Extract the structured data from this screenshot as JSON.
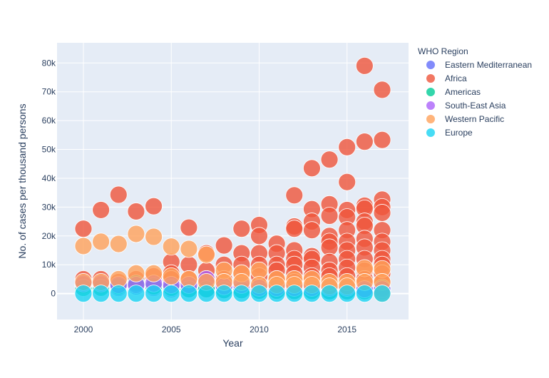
{
  "chart_data": {
    "type": "scatter",
    "xlabel": "Year",
    "ylabel": "No. of cases per thousand persons",
    "xlim": [
      1998.5,
      2018.5
    ],
    "ylim": [
      -9000,
      87000
    ],
    "x_ticks": [
      2000,
      2005,
      2010,
      2015
    ],
    "y_ticks": [
      0,
      10000,
      20000,
      30000,
      40000,
      50000,
      60000,
      70000,
      80000
    ],
    "y_tick_labels": [
      "0",
      "10k",
      "20k",
      "30k",
      "40k",
      "50k",
      "60k",
      "70k",
      "80k"
    ],
    "grid": true,
    "legend_position": "top-right",
    "legend": {
      "title": "WHO Region",
      "entries": [
        "Eastern Mediterranean",
        "Africa",
        "Americas",
        "South-East Asia",
        "Western Pacific",
        "Europe"
      ]
    },
    "series": [
      {
        "name": "Eastern Mediterranean",
        "color": "#636efa",
        "points": [
          [
            2000,
            3000
          ],
          [
            2001,
            2500
          ],
          [
            2002,
            2000
          ],
          [
            2003,
            2500
          ],
          [
            2004,
            2000
          ],
          [
            2005,
            1500
          ],
          [
            2006,
            1500
          ],
          [
            2007,
            1500
          ],
          [
            2008,
            1200
          ],
          [
            2009,
            1200
          ],
          [
            2010,
            1000
          ],
          [
            2011,
            1000
          ],
          [
            2012,
            1000
          ],
          [
            2013,
            1000
          ],
          [
            2014,
            900
          ],
          [
            2015,
            900
          ],
          [
            2016,
            900
          ],
          [
            2017,
            900
          ]
        ]
      },
      {
        "name": "Africa",
        "color": "#ef553b",
        "points": [
          [
            2000,
            22500
          ],
          [
            2000,
            5000
          ],
          [
            2000,
            3000
          ],
          [
            2001,
            29000
          ],
          [
            2001,
            5000
          ],
          [
            2001,
            3000
          ],
          [
            2002,
            34300
          ],
          [
            2002,
            4000
          ],
          [
            2003,
            28500
          ],
          [
            2003,
            5000
          ],
          [
            2004,
            30300
          ],
          [
            2004,
            6000
          ],
          [
            2005,
            11000
          ],
          [
            2005,
            7000
          ],
          [
            2005,
            5000
          ],
          [
            2006,
            22900
          ],
          [
            2006,
            10000
          ],
          [
            2006,
            5000
          ],
          [
            2007,
            14000
          ],
          [
            2007,
            8000
          ],
          [
            2007,
            5000
          ],
          [
            2008,
            16700
          ],
          [
            2008,
            10000
          ],
          [
            2008,
            5000
          ],
          [
            2009,
            22500
          ],
          [
            2009,
            14000
          ],
          [
            2009,
            10000
          ],
          [
            2009,
            7000
          ],
          [
            2010,
            23800
          ],
          [
            2010,
            20000
          ],
          [
            2010,
            14000
          ],
          [
            2010,
            10000
          ],
          [
            2010,
            6000
          ],
          [
            2011,
            17300
          ],
          [
            2011,
            14000
          ],
          [
            2011,
            10000
          ],
          [
            2011,
            8000
          ],
          [
            2011,
            5000
          ],
          [
            2012,
            34100
          ],
          [
            2012,
            23300
          ],
          [
            2012,
            22500
          ],
          [
            2012,
            15000
          ],
          [
            2012,
            12000
          ],
          [
            2012,
            10000
          ],
          [
            2012,
            7000
          ],
          [
            2012,
            4000
          ],
          [
            2013,
            43500
          ],
          [
            2013,
            29300
          ],
          [
            2013,
            25000
          ],
          [
            2013,
            22000
          ],
          [
            2013,
            13000
          ],
          [
            2013,
            12000
          ],
          [
            2013,
            9000
          ],
          [
            2013,
            6000
          ],
          [
            2014,
            46500
          ],
          [
            2014,
            31000
          ],
          [
            2014,
            27000
          ],
          [
            2014,
            20000
          ],
          [
            2014,
            18000
          ],
          [
            2014,
            16000
          ],
          [
            2014,
            11000
          ],
          [
            2014,
            8000
          ],
          [
            2014,
            6000
          ],
          [
            2015,
            50800
          ],
          [
            2015,
            38700
          ],
          [
            2015,
            29000
          ],
          [
            2015,
            26500
          ],
          [
            2015,
            22000
          ],
          [
            2015,
            18000
          ],
          [
            2015,
            15000
          ],
          [
            2015,
            12000
          ],
          [
            2015,
            9000
          ],
          [
            2015,
            6000
          ],
          [
            2016,
            79000
          ],
          [
            2016,
            52700
          ],
          [
            2016,
            30500
          ],
          [
            2016,
            29500
          ],
          [
            2016,
            25000
          ],
          [
            2016,
            23500
          ],
          [
            2016,
            19000
          ],
          [
            2016,
            16000
          ],
          [
            2016,
            12000
          ],
          [
            2016,
            8000
          ],
          [
            2016,
            5000
          ],
          [
            2017,
            70700
          ],
          [
            2017,
            53300
          ],
          [
            2017,
            32600
          ],
          [
            2017,
            30000
          ],
          [
            2017,
            28000
          ],
          [
            2017,
            22000
          ],
          [
            2017,
            18000
          ],
          [
            2017,
            15000
          ],
          [
            2017,
            12000
          ],
          [
            2017,
            10000
          ],
          [
            2017,
            7000
          ],
          [
            2017,
            4000
          ]
        ]
      },
      {
        "name": "Americas",
        "color": "#00cc96",
        "points": [
          [
            2000,
            2000
          ],
          [
            2001,
            2000
          ],
          [
            2002,
            2500
          ],
          [
            2003,
            3500
          ],
          [
            2004,
            2500
          ],
          [
            2005,
            2000
          ],
          [
            2006,
            1500
          ],
          [
            2007,
            1500
          ],
          [
            2008,
            1200
          ],
          [
            2009,
            1200
          ],
          [
            2010,
            1000
          ],
          [
            2011,
            1000
          ],
          [
            2012,
            900
          ],
          [
            2013,
            900
          ],
          [
            2014,
            800
          ],
          [
            2015,
            800
          ],
          [
            2016,
            900
          ],
          [
            2017,
            2000
          ]
        ]
      },
      {
        "name": "South-East Asia",
        "color": "#ab63fa",
        "points": [
          [
            2000,
            3500
          ],
          [
            2001,
            3500
          ],
          [
            2002,
            3000
          ],
          [
            2003,
            3000
          ],
          [
            2004,
            3500
          ],
          [
            2005,
            3000
          ],
          [
            2006,
            3000
          ],
          [
            2007,
            5000
          ],
          [
            2008,
            2500
          ],
          [
            2009,
            3000
          ],
          [
            2010,
            2000
          ],
          [
            2011,
            2000
          ],
          [
            2012,
            2000
          ],
          [
            2013,
            2000
          ],
          [
            2014,
            2000
          ],
          [
            2015,
            2000
          ],
          [
            2016,
            1500
          ],
          [
            2017,
            1500
          ]
        ]
      },
      {
        "name": "Western Pacific",
        "color": "#ffa15a",
        "points": [
          [
            2000,
            16500
          ],
          [
            2000,
            4000
          ],
          [
            2001,
            18000
          ],
          [
            2001,
            4000
          ],
          [
            2002,
            17200
          ],
          [
            2002,
            5000
          ],
          [
            2003,
            20700
          ],
          [
            2003,
            7000
          ],
          [
            2004,
            19700
          ],
          [
            2004,
            7000
          ],
          [
            2005,
            16300
          ],
          [
            2005,
            6000
          ],
          [
            2006,
            15500
          ],
          [
            2006,
            5000
          ],
          [
            2007,
            13500
          ],
          [
            2007,
            4000
          ],
          [
            2008,
            8000
          ],
          [
            2008,
            4000
          ],
          [
            2009,
            7000
          ],
          [
            2009,
            4000
          ],
          [
            2010,
            8000
          ],
          [
            2010,
            3000
          ],
          [
            2011,
            5000
          ],
          [
            2011,
            3000
          ],
          [
            2012,
            5000
          ],
          [
            2012,
            3000
          ],
          [
            2013,
            5000
          ],
          [
            2013,
            3000
          ],
          [
            2014,
            4000
          ],
          [
            2014,
            2500
          ],
          [
            2015,
            4000
          ],
          [
            2015,
            2500
          ],
          [
            2016,
            8800
          ],
          [
            2016,
            4000
          ],
          [
            2017,
            8500
          ],
          [
            2017,
            4000
          ],
          [
            2017,
            0
          ]
        ]
      },
      {
        "name": "Europe",
        "color": "#19d3f3",
        "points": [
          [
            2000,
            0
          ],
          [
            2001,
            0
          ],
          [
            2002,
            0
          ],
          [
            2003,
            0
          ],
          [
            2004,
            0
          ],
          [
            2005,
            0
          ],
          [
            2006,
            0
          ],
          [
            2007,
            0
          ],
          [
            2008,
            0
          ],
          [
            2009,
            0
          ],
          [
            2010,
            0
          ],
          [
            2011,
            0
          ],
          [
            2012,
            0
          ],
          [
            2013,
            0
          ],
          [
            2014,
            0
          ],
          [
            2015,
            0
          ],
          [
            2016,
            0
          ],
          [
            2017,
            0
          ]
        ]
      }
    ]
  }
}
